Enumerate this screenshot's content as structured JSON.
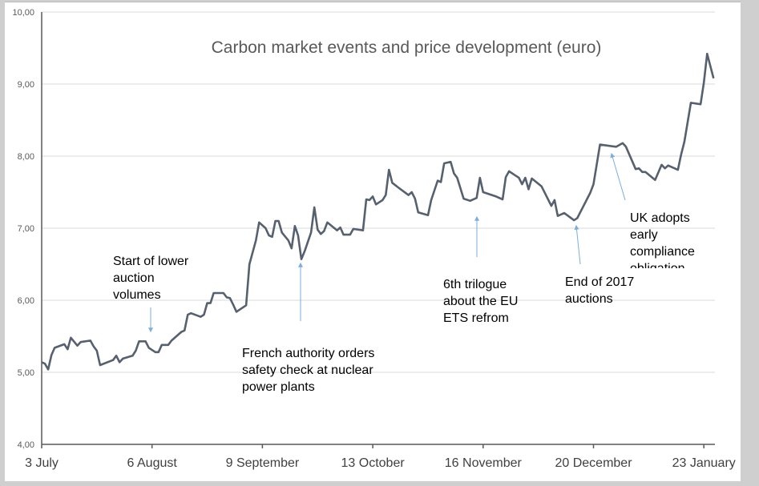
{
  "chart_data": {
    "type": "line",
    "title": "Carbon market events and price development (euro)",
    "xlabel": "",
    "ylabel": "",
    "ylim": [
      4,
      10
    ],
    "yticks": [
      "4,00",
      "5,00",
      "6,00",
      "7,00",
      "8,00",
      "9,00",
      "10,00"
    ],
    "xlim": [
      "2017-07-03",
      "2018-01-26"
    ],
    "xticks": [
      {
        "date": "2017-07-03",
        "label": "3 July"
      },
      {
        "date": "2017-08-06",
        "label": "6 August"
      },
      {
        "date": "2017-09-09",
        "label": "9 September"
      },
      {
        "date": "2017-10-13",
        "label": "13 October"
      },
      {
        "date": "2017-11-16",
        "label": "16 November"
      },
      {
        "date": "2017-12-20",
        "label": "20 December"
      },
      {
        "date": "2018-01-23",
        "label": "23 January"
      }
    ],
    "grid": true,
    "line_color": "#56606e",
    "annotation_color": "#7aaede",
    "series": [
      {
        "x": [
          "2017-07-03",
          "2017-07-04",
          "2017-07-05",
          "2017-07-06",
          "2017-07-07",
          "2017-07-10",
          "2017-07-11",
          "2017-07-12",
          "2017-07-14",
          "2017-07-15",
          "2017-07-18",
          "2017-07-19",
          "2017-07-20",
          "2017-07-21",
          "2017-07-25",
          "2017-07-26",
          "2017-07-27",
          "2017-07-28",
          "2017-07-31",
          "2017-08-01",
          "2017-08-02",
          "2017-08-04",
          "2017-08-05",
          "2017-08-07",
          "2017-08-08",
          "2017-08-09",
          "2017-08-11",
          "2017-08-12",
          "2017-08-15",
          "2017-08-16",
          "2017-08-17",
          "2017-08-18",
          "2017-08-21",
          "2017-08-22",
          "2017-08-23",
          "2017-08-24",
          "2017-08-25",
          "2017-08-28",
          "2017-08-29",
          "2017-08-30",
          "2017-08-31",
          "2017-09-01",
          "2017-09-04",
          "2017-09-05",
          "2017-09-07",
          "2017-09-08",
          "2017-09-10",
          "2017-09-11",
          "2017-09-12",
          "2017-09-13",
          "2017-09-14",
          "2017-09-15",
          "2017-09-17",
          "2017-09-18",
          "2017-09-19",
          "2017-09-20",
          "2017-09-21",
          "2017-09-22",
          "2017-09-24",
          "2017-09-25",
          "2017-09-26",
          "2017-09-27",
          "2017-09-28",
          "2017-09-29",
          "2017-10-02",
          "2017-10-03",
          "2017-10-04",
          "2017-10-06",
          "2017-10-07",
          "2017-10-10",
          "2017-10-11",
          "2017-10-12",
          "2017-10-13",
          "2017-10-14",
          "2017-10-16",
          "2017-10-17",
          "2017-10-18",
          "2017-10-19",
          "2017-10-21",
          "2017-10-24",
          "2017-10-25",
          "2017-10-26",
          "2017-10-27",
          "2017-10-30",
          "2017-10-31",
          "2017-11-02",
          "2017-11-03",
          "2017-11-04",
          "2017-11-06",
          "2017-11-07",
          "2017-11-08",
          "2017-11-10",
          "2017-11-12",
          "2017-11-14",
          "2017-11-15",
          "2017-11-16",
          "2017-11-20",
          "2017-11-22",
          "2017-11-23",
          "2017-11-24",
          "2017-11-26",
          "2017-11-27",
          "2017-11-28",
          "2017-11-29",
          "2017-11-30",
          "2017-12-01",
          "2017-12-04",
          "2017-12-07",
          "2017-12-08",
          "2017-12-09",
          "2017-12-11",
          "2017-12-14",
          "2017-12-15",
          "2017-12-19",
          "2017-12-20",
          "2017-12-22",
          "2017-12-27",
          "2017-12-29",
          "2017-12-30",
          "2018-01-02",
          "2018-01-03",
          "2018-01-04",
          "2018-01-05",
          "2018-01-08",
          "2018-01-10",
          "2018-01-11",
          "2018-01-12",
          "2018-01-15",
          "2018-01-16",
          "2018-01-17",
          "2018-01-19",
          "2018-01-22",
          "2018-01-23",
          "2018-01-24",
          "2018-01-26"
        ],
        "y": [
          5.14,
          5.12,
          5.04,
          5.24,
          5.34,
          5.39,
          5.32,
          5.48,
          5.37,
          5.42,
          5.44,
          5.36,
          5.3,
          5.1,
          5.17,
          5.23,
          5.14,
          5.19,
          5.23,
          5.3,
          5.43,
          5.43,
          5.34,
          5.28,
          5.28,
          5.38,
          5.38,
          5.44,
          5.56,
          5.58,
          5.8,
          5.82,
          5.77,
          5.8,
          5.96,
          5.96,
          6.1,
          6.1,
          6.04,
          6.03,
          5.94,
          5.84,
          5.93,
          6.5,
          6.83,
          7.08,
          7.0,
          6.9,
          6.88,
          7.1,
          7.1,
          6.94,
          6.83,
          6.72,
          7.03,
          6.9,
          6.57,
          6.68,
          6.94,
          7.29,
          6.98,
          6.92,
          6.96,
          7.08,
          6.97,
          7.01,
          6.91,
          6.91,
          6.99,
          6.97,
          7.4,
          7.39,
          7.44,
          7.33,
          7.39,
          7.46,
          7.81,
          7.63,
          7.56,
          7.46,
          7.5,
          7.41,
          7.22,
          7.18,
          7.39,
          7.66,
          7.64,
          7.9,
          7.92,
          7.76,
          7.7,
          7.41,
          7.38,
          7.42,
          7.7,
          7.5,
          7.44,
          7.4,
          7.71,
          7.79,
          7.73,
          7.7,
          7.61,
          7.7,
          7.54,
          7.69,
          7.58,
          7.31,
          7.39,
          7.17,
          7.21,
          7.11,
          7.14,
          7.49,
          7.61,
          8.16,
          8.13,
          8.18,
          8.13,
          7.82,
          7.83,
          7.78,
          7.78,
          7.67,
          7.88,
          7.83,
          7.87,
          7.81,
          8.02,
          8.2,
          8.74,
          8.72,
          9.02,
          9.42,
          9.08
        ]
      }
    ],
    "annotations": [
      {
        "text": "Start of lower\nauction\nvolumes"
      },
      {
        "text": "French authority orders\nsafety check at nuclear\npower plants"
      },
      {
        "text": "6th trilogue\nabout the EU\nETS refrom"
      },
      {
        "text": "End of 2017\nauctions"
      },
      {
        "text": "UK adopts\nearly\ncompliance\nobligation"
      }
    ]
  }
}
